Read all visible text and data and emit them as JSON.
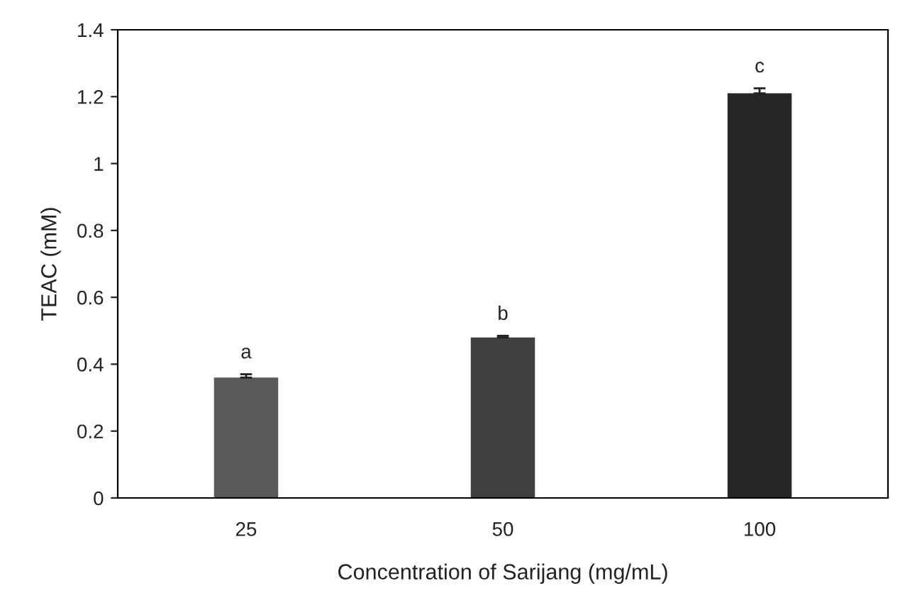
{
  "chart_data": {
    "type": "bar",
    "categories": [
      "25",
      "50",
      "100"
    ],
    "values": [
      0.36,
      0.48,
      1.21
    ],
    "errors": [
      0.01,
      0.005,
      0.015
    ],
    "colors": [
      "#5a5a5a",
      "#404040",
      "#262626"
    ],
    "xlabel": "Concentration of Sarijang (mg/mL)",
    "ylabel": "TEAC (mM)",
    "ylim": [
      0,
      1.4
    ],
    "yticks": [
      0,
      0.2,
      0.4,
      0.6,
      0.8,
      1,
      1.2,
      1.4
    ],
    "annotations": [
      {
        "text": "a",
        "x": "25",
        "y": 0.37
      },
      {
        "text": "b",
        "x": "50",
        "y": 0.485
      },
      {
        "text": "c",
        "x": "100",
        "y": 1.225
      }
    ],
    "grid": false,
    "legend": false
  }
}
